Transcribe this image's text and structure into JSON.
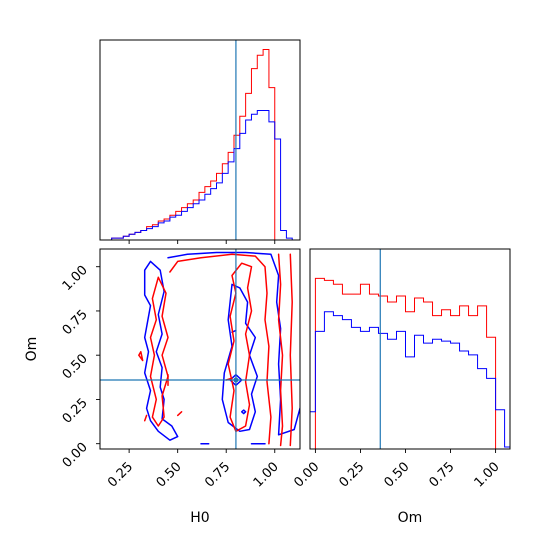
{
  "chart_data": {
    "type": "corner",
    "params": [
      "H0",
      "Om"
    ],
    "colors": {
      "series_a": "#ff0000",
      "series_b": "#0000ff",
      "truth": "#1f77b4"
    },
    "truth": {
      "H0": 0.8,
      "Om": 0.36
    },
    "panels": [
      {
        "id": "hist-H0",
        "type": "histogram",
        "param": "H0",
        "xlim": [
          0.1,
          1.13
        ],
        "ylim": [
          0,
          1.05
        ],
        "ticks": [
          0.25,
          0.5,
          0.75,
          1.0
        ],
        "bins": [
          0.1,
          0.13,
          0.16,
          0.19,
          0.22,
          0.25,
          0.28,
          0.31,
          0.34,
          0.37,
          0.4,
          0.43,
          0.46,
          0.49,
          0.52,
          0.55,
          0.58,
          0.61,
          0.64,
          0.67,
          0.7,
          0.73,
          0.76,
          0.79,
          0.82,
          0.85,
          0.88,
          0.91,
          0.94,
          0.97,
          1.0,
          1.03,
          1.06,
          1.09,
          1.12
        ],
        "series": [
          {
            "key": "series_a",
            "values": [
              0,
              0,
              0.01,
              0.01,
              0.02,
              0.03,
              0.04,
              0.05,
              0.07,
              0.08,
              0.1,
              0.11,
              0.13,
              0.15,
              0.17,
              0.19,
              0.21,
              0.25,
              0.28,
              0.31,
              0.35,
              0.4,
              0.46,
              0.55,
              0.65,
              0.77,
              0.9,
              0.97,
              1.0,
              0.8,
              0,
              0,
              0,
              0
            ]
          },
          {
            "key": "series_b",
            "values": [
              0,
              0,
              0.01,
              0.01,
              0.02,
              0.03,
              0.04,
              0.05,
              0.06,
              0.07,
              0.09,
              0.1,
              0.12,
              0.13,
              0.15,
              0.17,
              0.19,
              0.21,
              0.24,
              0.27,
              0.3,
              0.35,
              0.41,
              0.48,
              0.56,
              0.63,
              0.66,
              0.68,
              0.68,
              0.62,
              0.53,
              0.05,
              0.01,
              0
            ]
          }
        ]
      },
      {
        "id": "hist-Om",
        "type": "histogram",
        "param": "Om",
        "xlim": [
          -0.03,
          1.08
        ],
        "ylim": [
          0,
          1.02
        ],
        "ticks": [
          0.0,
          0.25,
          0.5,
          0.75,
          1.0
        ],
        "tick_labels": [
          "0.00",
          "0.25",
          "0.50",
          "0.75",
          "1.00"
        ],
        "bins": [
          -0.05,
          0.0,
          0.05,
          0.1,
          0.15,
          0.2,
          0.25,
          0.3,
          0.35,
          0.4,
          0.45,
          0.5,
          0.55,
          0.6,
          0.65,
          0.7,
          0.75,
          0.8,
          0.85,
          0.9,
          0.95,
          1.0,
          1.05,
          1.1
        ],
        "series": [
          {
            "key": "series_a",
            "values": [
              0,
              0.87,
              0.86,
              0.84,
              0.79,
              0.79,
              0.84,
              0.79,
              0.78,
              0.75,
              0.78,
              0.7,
              0.77,
              0.75,
              0.68,
              0.71,
              0.68,
              0.73,
              0.68,
              0.73,
              0.57,
              0,
              0,
              0
            ]
          },
          {
            "key": "series_b",
            "values": [
              0.19,
              0.6,
              0.7,
              0.68,
              0.66,
              0.62,
              0.6,
              0.62,
              0.59,
              0.56,
              0.6,
              0.47,
              0.58,
              0.54,
              0.56,
              0.55,
              0.54,
              0.5,
              0.48,
              0.41,
              0.36,
              0.2,
              0.01,
              0
            ]
          }
        ]
      },
      {
        "id": "contour-H0-Om",
        "type": "contour",
        "x": "H0",
        "y": "Om",
        "xlim": [
          0.1,
          1.13
        ],
        "ylim": [
          -0.03,
          1.1
        ],
        "xticks": [
          0.25,
          0.5,
          0.75,
          1.0
        ],
        "xtick_labels": [
          "0.25",
          "0.50",
          "0.75",
          "1.00"
        ],
        "yticks": [
          0.0,
          0.25,
          0.5,
          0.75,
          1.0
        ],
        "ytick_labels": [
          "0.00",
          "0.25",
          "0.50",
          "0.75",
          "1.00"
        ],
        "xlabel": "H0",
        "ylabel": "Om",
        "contours": [
          {
            "key": "series_b",
            "points": [
              [
                0.36,
                1.03
              ],
              [
                0.33,
                0.98
              ],
              [
                0.33,
                0.84
              ],
              [
                0.36,
                0.78
              ],
              [
                0.33,
                0.6
              ],
              [
                0.35,
                0.52
              ],
              [
                0.33,
                0.4
              ],
              [
                0.36,
                0.3
              ],
              [
                0.34,
                0.2
              ],
              [
                0.36,
                0.13
              ],
              [
                0.4,
                0.07
              ],
              [
                0.46,
                0.02
              ],
              [
                0.5,
                0.04
              ],
              [
                0.47,
                0.1
              ],
              [
                0.42,
                0.14
              ],
              [
                0.43,
                0.25
              ],
              [
                0.41,
                0.32
              ],
              [
                0.42,
                0.43
              ],
              [
                0.39,
                0.52
              ],
              [
                0.42,
                0.62
              ],
              [
                0.4,
                0.73
              ],
              [
                0.43,
                0.86
              ],
              [
                0.41,
                0.98
              ],
              [
                0.36,
                1.03
              ]
            ]
          },
          {
            "key": "series_b",
            "points": [
              [
                0.78,
                0.9
              ],
              [
                0.76,
                0.7
              ],
              [
                0.78,
                0.55
              ],
              [
                0.74,
                0.4
              ],
              [
                0.73,
                0.25
              ],
              [
                0.76,
                0.12
              ],
              [
                0.82,
                0.07
              ],
              [
                0.87,
                0.08
              ],
              [
                0.9,
                0.18
              ],
              [
                0.88,
                0.28
              ],
              [
                0.91,
                0.38
              ],
              [
                0.87,
                0.5
              ],
              [
                0.9,
                0.6
              ],
              [
                0.85,
                0.68
              ],
              [
                0.86,
                0.8
              ],
              [
                0.82,
                0.88
              ],
              [
                0.78,
                0.9
              ]
            ]
          },
          {
            "key": "series_b",
            "points": [
              [
                0.45,
                1.05
              ],
              [
                0.55,
                1.07
              ],
              [
                0.7,
                1.08
              ],
              [
                0.85,
                1.08
              ],
              [
                0.98,
                1.07
              ],
              [
                1.02,
                0.95
              ],
              [
                1.01,
                0.8
              ],
              [
                1.03,
                0.65
              ],
              [
                1.02,
                0.45
              ],
              [
                1.03,
                0.25
              ],
              [
                1.02,
                0.05
              ],
              [
                1.1,
                0.08
              ],
              [
                1.13,
                0.2
              ]
            ]
          },
          {
            "key": "series_b",
            "points": [
              [
                0.88,
                0.0
              ],
              [
                0.95,
                0.0
              ]
            ]
          },
          {
            "key": "series_b",
            "points": [
              [
                0.62,
                0.0
              ],
              [
                0.66,
                0.0
              ]
            ]
          },
          {
            "key": "series_b",
            "points": [
              [
                0.78,
                0.63
              ],
              [
                0.8,
                0.64
              ]
            ]
          },
          {
            "key": "series_b",
            "points": [
              [
                0.84,
                0.17
              ],
              [
                0.85,
                0.18
              ],
              [
                0.84,
                0.19
              ],
              [
                0.83,
                0.18
              ],
              [
                0.84,
                0.17
              ]
            ]
          },
          {
            "key": "series_b",
            "points": [
              [
                0.8,
                0.33
              ],
              [
                0.83,
                0.36
              ],
              [
                0.8,
                0.39
              ],
              [
                0.77,
                0.36
              ],
              [
                0.8,
                0.33
              ]
            ]
          },
          {
            "key": "series_a",
            "points": [
              [
                0.4,
                0.94
              ],
              [
                0.37,
                0.82
              ],
              [
                0.39,
                0.7
              ],
              [
                0.36,
                0.6
              ],
              [
                0.38,
                0.5
              ],
              [
                0.36,
                0.38
              ],
              [
                0.39,
                0.25
              ],
              [
                0.37,
                0.15
              ],
              [
                0.4,
                0.1
              ],
              [
                0.43,
                0.15
              ],
              [
                0.42,
                0.27
              ],
              [
                0.45,
                0.38
              ],
              [
                0.42,
                0.5
              ],
              [
                0.45,
                0.6
              ],
              [
                0.42,
                0.72
              ],
              [
                0.44,
                0.85
              ],
              [
                0.4,
                0.94
              ]
            ]
          },
          {
            "key": "series_a",
            "points": [
              [
                0.46,
                0.97
              ],
              [
                0.5,
                1.03
              ],
              [
                0.62,
                1.05
              ],
              [
                0.78,
                1.07
              ],
              [
                0.9,
                1.06
              ],
              [
                0.95,
                1.0
              ],
              [
                0.96,
                0.85
              ],
              [
                0.95,
                0.7
              ],
              [
                0.97,
                0.55
              ],
              [
                0.96,
                0.35
              ],
              [
                0.98,
                0.15
              ],
              [
                0.97,
                0.0
              ]
            ]
          },
          {
            "key": "series_a",
            "points": [
              [
                0.88,
                1.0
              ],
              [
                0.86,
                0.88
              ],
              [
                0.88,
                0.75
              ],
              [
                0.85,
                0.62
              ],
              [
                0.87,
                0.5
              ],
              [
                0.85,
                0.35
              ],
              [
                0.87,
                0.22
              ],
              [
                0.85,
                0.1
              ],
              [
                0.8,
                0.07
              ],
              [
                0.77,
                0.15
              ],
              [
                0.79,
                0.3
              ],
              [
                0.76,
                0.45
              ],
              [
                0.79,
                0.58
              ],
              [
                0.77,
                0.72
              ],
              [
                0.8,
                0.85
              ],
              [
                0.78,
                0.95
              ],
              [
                0.83,
                1.02
              ],
              [
                0.88,
                1.0
              ]
            ]
          },
          {
            "key": "series_a",
            "points": [
              [
                1.02,
                1.07
              ],
              [
                1.03,
                0.9
              ],
              [
                1.02,
                0.7
              ],
              [
                1.04,
                0.5
              ],
              [
                1.03,
                0.3
              ],
              [
                1.04,
                0.1
              ],
              [
                1.03,
                -0.01
              ]
            ]
          },
          {
            "key": "series_a",
            "points": [
              [
                1.08,
                1.07
              ],
              [
                1.09,
                0.8
              ],
              [
                1.08,
                0.5
              ],
              [
                1.09,
                0.2
              ],
              [
                1.08,
                -0.01
              ]
            ]
          },
          {
            "key": "series_a",
            "points": [
              [
                0.3,
                0.5
              ],
              [
                0.32,
                0.47
              ],
              [
                0.31,
                0.52
              ],
              [
                0.3,
                0.5
              ]
            ]
          },
          {
            "key": "series_a",
            "points": [
              [
                0.33,
                0.13
              ],
              [
                0.34,
                0.16
              ]
            ]
          },
          {
            "key": "series_a",
            "points": [
              [
                0.5,
                0.16
              ],
              [
                0.52,
                0.18
              ]
            ]
          },
          {
            "key": "series_a",
            "points": [
              [
                0.45,
                0.33
              ],
              [
                0.45,
                0.39
              ]
            ]
          },
          {
            "key": "series_a",
            "points": [
              [
                0.75,
                0.36
              ],
              [
                0.78,
                0.37
              ]
            ]
          }
        ]
      }
    ]
  }
}
